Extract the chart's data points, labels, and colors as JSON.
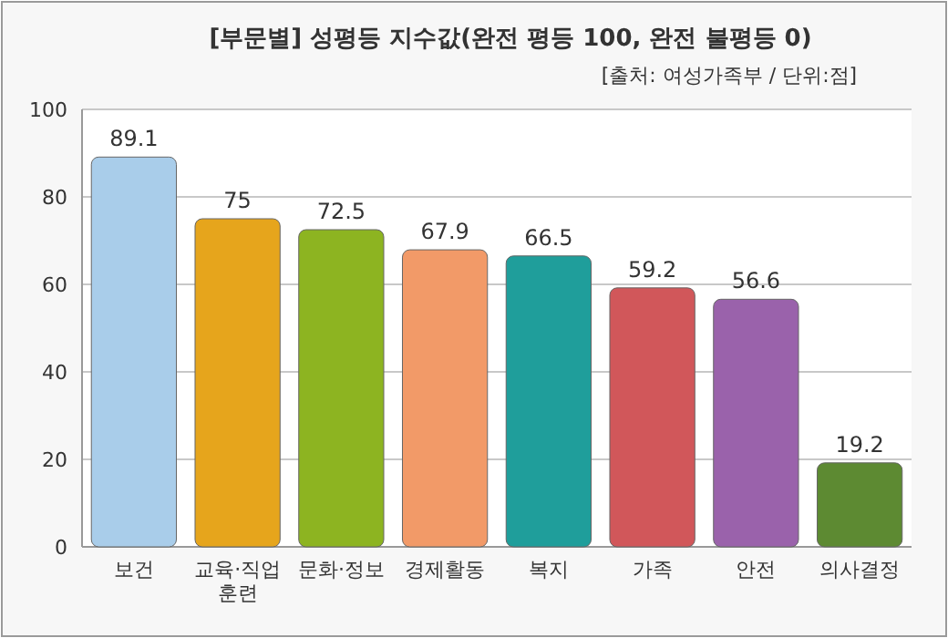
{
  "chart_data": {
    "type": "bar",
    "title": "[부문별] 성평등 지수값(완전 평등 100, 완전 불평등 0)",
    "subtitle": "[출처: 여성가족부 / 단위:점]",
    "categories": [
      "보건",
      "교육·직업훈련",
      "문화·정보",
      "경제활동",
      "복지",
      "가족",
      "안전",
      "의사결정"
    ],
    "values": [
      89.1,
      75,
      72.5,
      67.9,
      66.5,
      59.2,
      56.6,
      19.2
    ],
    "colors": [
      "#a9cdea",
      "#e6a51c",
      "#8db421",
      "#f29a68",
      "#1f9e9b",
      "#d1575a",
      "#9a62ab",
      "#5d8a32"
    ],
    "ylim": [
      0,
      100
    ],
    "yticks": [
      0,
      20,
      40,
      60,
      80,
      100
    ],
    "grid": "y",
    "data_labels": true
  }
}
